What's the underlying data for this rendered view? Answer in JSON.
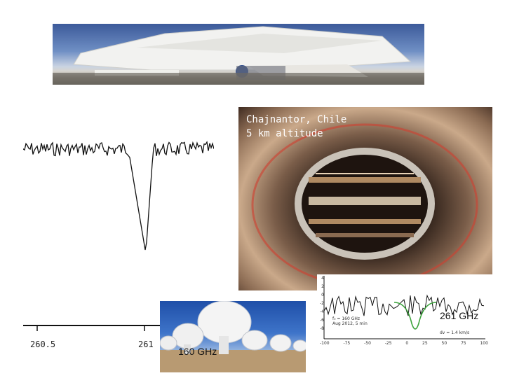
{
  "captions": {
    "site_line1": "Chajnantor, Chile",
    "site_line2": "5 km altitude"
  },
  "spectrum_left": {
    "ticks": [
      "260.5",
      "261"
    ]
  },
  "spectrum_right": {
    "y_ticks": [
      "4",
      "2",
      "0",
      "-2",
      "-4",
      "-6",
      "-8"
    ],
    "x_ticks": [
      "-100",
      "-75",
      "-50",
      "-25",
      "0",
      "25",
      "50",
      "75",
      "100"
    ],
    "legend_lines": [
      "f₀ = 160 GHz",
      "Aug 2012, 5 min",
      "dv = 1.4 km/s"
    ]
  },
  "labels": {
    "freq_261": "261 GHz",
    "freq_160": "160 GHz"
  },
  "colors": {
    "plot_line": "#111111",
    "fit_line": "#3aa23a",
    "caption": "#ffffff"
  }
}
